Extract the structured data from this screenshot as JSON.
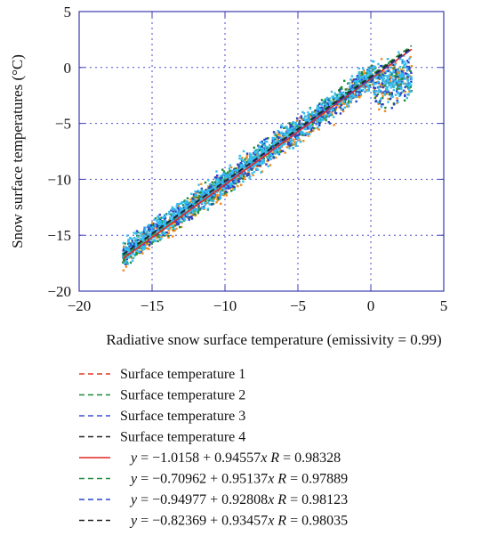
{
  "chart_data": {
    "type": "scatter",
    "title": "",
    "xlabel": "Radiative snow surface temperature (emissivity = 0.99)",
    "ylabel": "Snow surface temperatures (°C)",
    "xlim": [
      -20,
      5
    ],
    "ylim": [
      -20,
      5
    ],
    "xticks": [
      "−20",
      "−15",
      "−10",
      "−5",
      "0",
      "5"
    ],
    "yticks": [
      "5",
      "0",
      "−5",
      "−10",
      "−15",
      "−20"
    ],
    "xtick_values": [
      -20,
      -15,
      -10,
      -5,
      0,
      5
    ],
    "ytick_values": [
      5,
      0,
      -5,
      -10,
      -15,
      -20
    ],
    "grid": true,
    "legend_position": "below",
    "series": [
      {
        "name": "Surface temperature 1",
        "color": "#f08a1e",
        "line_color": "#e23a2a",
        "x_range": [
          -17,
          2.8
        ]
      },
      {
        "name": "Surface temperature 2",
        "color": "#1f8a3b",
        "line_color": "#1f8a3b",
        "x_range": [
          -17,
          2.8
        ]
      },
      {
        "name": "Surface temperature 3",
        "color": "#2a43c8",
        "line_color": "#3a50cf",
        "x_range": [
          -17,
          2.8
        ]
      },
      {
        "name": "Surface temperature 4",
        "color": "#33bdf0",
        "line_color": "#222222",
        "x_range": [
          -17,
          2.8
        ]
      }
    ],
    "fits": [
      {
        "label_pre": "y",
        "equation": " = −1.0158 + 0.94557",
        "var": "x",
        "r_label": " R",
        "r_value": " = 0.98328",
        "intercept": -1.0158,
        "slope": 0.94557,
        "R": 0.98328,
        "color": "#e32626",
        "dash": "solid"
      },
      {
        "label_pre": "y",
        "equation": " = −0.70962 + 0.95137",
        "var": "x",
        "r_label": " R",
        "r_value": " = 0.97889",
        "intercept": -0.70962,
        "slope": 0.95137,
        "R": 0.97889,
        "color": "#1f8a3b",
        "dash": "dashed"
      },
      {
        "label_pre": "y",
        "equation": " = −0.94977 + 0.92808",
        "var": "x",
        "r_label": " R",
        "r_value": " = 0.98123",
        "intercept": -0.94977,
        "slope": 0.92808,
        "R": 0.98123,
        "color": "#2a43c8",
        "dash": "dashed"
      },
      {
        "label_pre": "y",
        "equation": " = −0.82369 + 0.93457",
        "var": "x",
        "r_label": " R",
        "r_value": " = 0.98035",
        "intercept": -0.82369,
        "slope": 0.93457,
        "R": 0.98035,
        "color": "#222222",
        "dash": "dashed"
      }
    ]
  }
}
